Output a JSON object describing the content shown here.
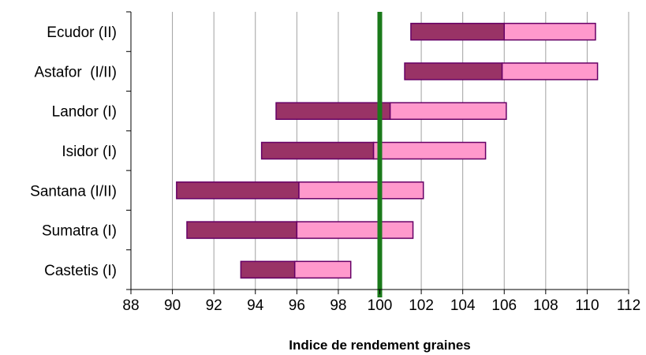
{
  "chart_data": {
    "type": "bar",
    "subtype": "floating-range-bar",
    "xlabel": "Indice de rendement graines",
    "xlim": [
      88,
      112
    ],
    "xticks": [
      "88",
      "90",
      "92",
      "94",
      "96",
      "98",
      "100",
      "102",
      "104",
      "106",
      "108",
      "110",
      "112"
    ],
    "grid": true,
    "reference_line": {
      "x": 100,
      "color": "#1a7a1a"
    },
    "colors": {
      "low_segment": "#993366",
      "high_segment": "#ff99cc",
      "border": "#660066"
    },
    "categories": [
      "Ecudor (II)",
      "Astafor  (I/II)",
      "Landor (I)",
      "Isidor (I)",
      "Santana (I/II)",
      "Sumatra (I)",
      "Castetis (I)"
    ],
    "series": [
      {
        "values": [
          [
            101.5,
            106.0
          ],
          [
            101.2,
            105.9
          ],
          [
            95.0,
            100.5
          ],
          [
            94.3,
            99.7
          ],
          [
            90.2,
            96.1
          ],
          [
            90.7,
            96.0
          ],
          [
            93.3,
            95.9
          ]
        ]
      },
      {
        "values": [
          [
            106.0,
            110.4
          ],
          [
            105.9,
            110.5
          ],
          [
            100.5,
            106.1
          ],
          [
            99.7,
            105.1
          ],
          [
            96.1,
            102.1
          ],
          [
            96.0,
            101.6
          ],
          [
            95.9,
            98.6
          ]
        ]
      }
    ]
  }
}
